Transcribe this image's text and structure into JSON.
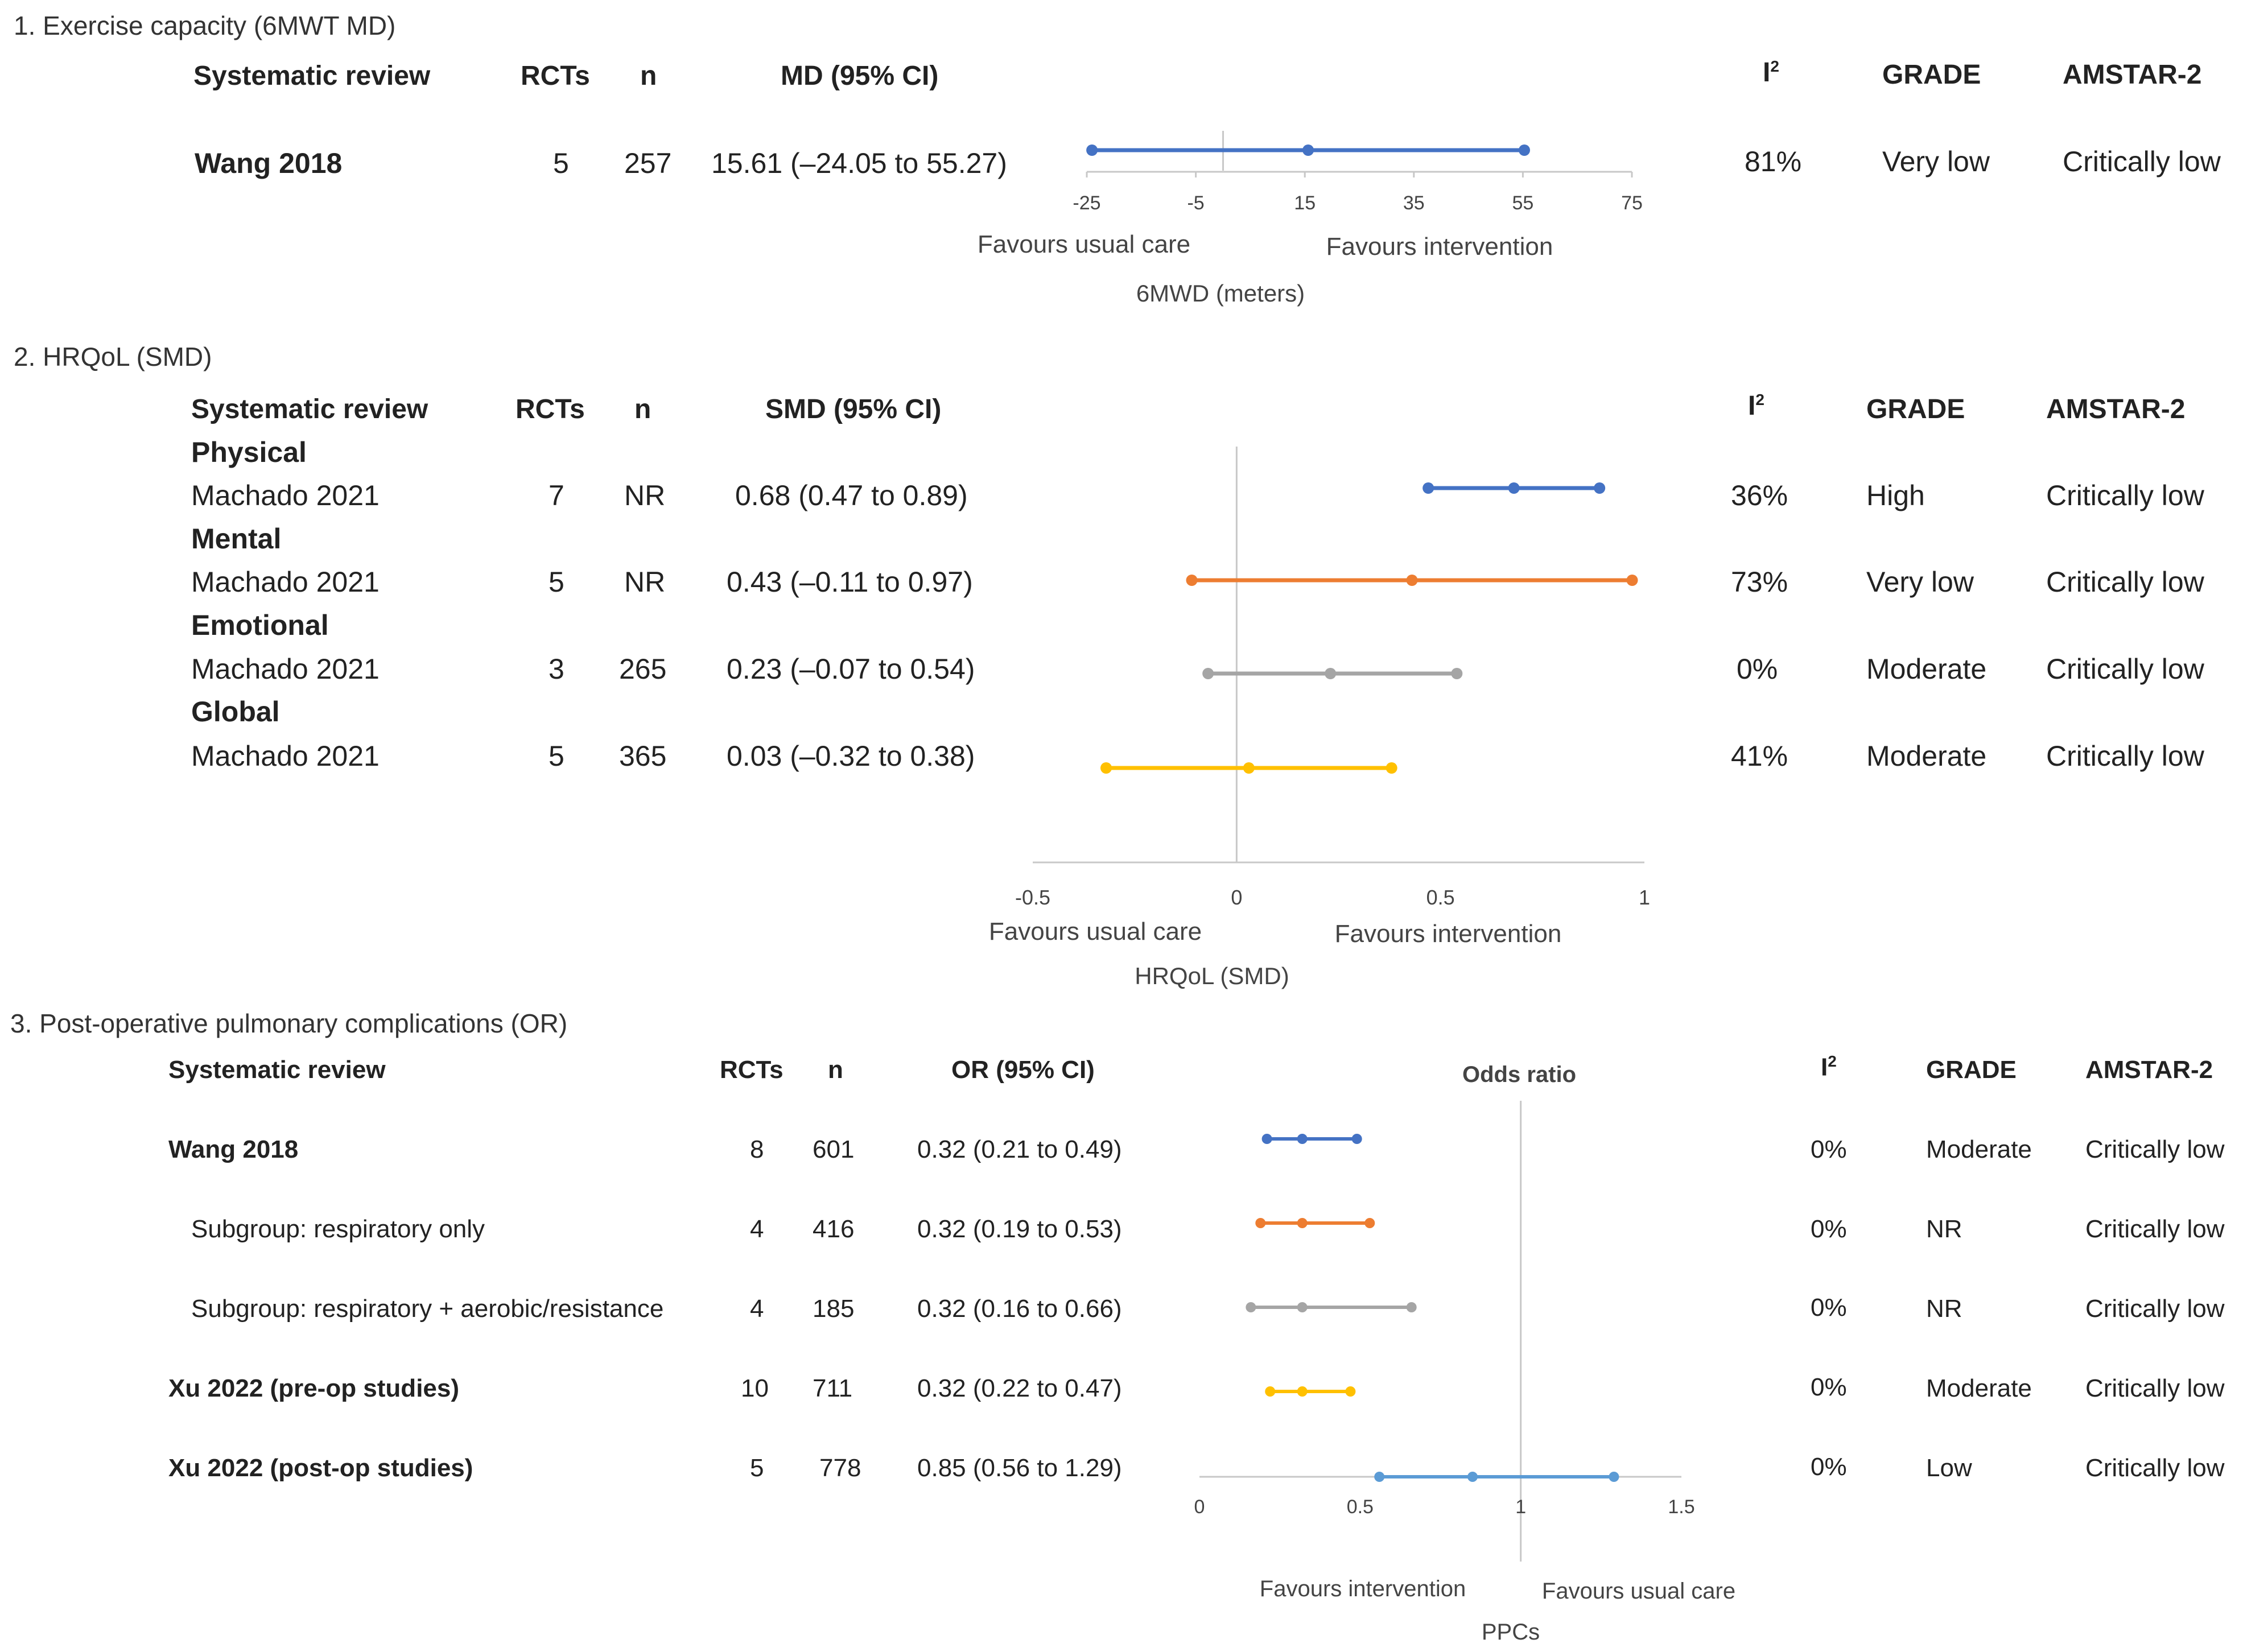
{
  "sections": [
    {
      "title": "1. Exercise capacity (6MWT MD)",
      "headers": {
        "review": "Systematic review",
        "rcts": "RCTs",
        "n": "n",
        "effect": "MD (95% CI)",
        "i2": "I",
        "i2_sup": "2",
        "grade": "GRADE",
        "amstar": "AMSTAR-2"
      },
      "rows": [
        {
          "review": "Wang 2018",
          "rcts": "5",
          "n": "257",
          "effect": "15.61 (–24.05 to 55.27)",
          "i2": "81%",
          "grade": "Very low",
          "amstar": "Critically low"
        }
      ],
      "x_label": "6MWD (meters)",
      "favours_left": "Favours usual care",
      "favours_right": "Favours intervention"
    },
    {
      "title": "2. HRQoL (SMD)",
      "headers": {
        "review": "Systematic review",
        "rcts": "RCTs",
        "n": "n",
        "effect": "SMD (95% CI)",
        "i2": "I",
        "i2_sup": "2",
        "grade": "GRADE",
        "amstar": "AMSTAR-2"
      },
      "groups": [
        {
          "name": "Physical",
          "review": "Machado 2021",
          "rcts": "7",
          "n": "NR",
          "effect": "0.68 (0.47 to 0.89)",
          "i2": "36%",
          "grade": "High",
          "amstar": "Critically low"
        },
        {
          "name": "Mental",
          "review": "Machado 2021",
          "rcts": "5",
          "n": "NR",
          "effect": "0.43 (–0.11 to 0.97)",
          "i2": "73%",
          "grade": "Very low",
          "amstar": "Critically low"
        },
        {
          "name": "Emotional",
          "review": "Machado 2021",
          "rcts": "3",
          "n": "265",
          "effect": "0.23 (–0.07 to 0.54)",
          "i2": "0%",
          "grade": "Moderate",
          "amstar": "Critically low"
        },
        {
          "name": "Global",
          "review": "Machado 2021",
          "rcts": "5",
          "n": "365",
          "effect": "0.03 (–0.32 to 0.38)",
          "i2": "41%",
          "grade": "Moderate",
          "amstar": "Critically low"
        }
      ],
      "x_label": "HRQoL (SMD)",
      "favours_left": "Favours usual care",
      "favours_right": "Favours intervention"
    },
    {
      "title": "3. Post-operative pulmonary complications (OR)",
      "headers": {
        "review": "Systematic review",
        "rcts": "RCTs",
        "n": "n",
        "effect": "OR (95% CI)",
        "i2": "I",
        "i2_sup": "2",
        "grade": "GRADE",
        "amstar": "AMSTAR-2"
      },
      "chart_title": "Odds ratio",
      "rows": [
        {
          "review": "Wang 2018",
          "rcts": "8",
          "n": "601",
          "effect": "0.32 (0.21 to 0.49)",
          "i2": "0%",
          "grade": "Moderate",
          "amstar": "Critically low"
        },
        {
          "review": "Subgroup: respiratory only",
          "rcts": "4",
          "n": "416",
          "effect": "0.32 (0.19 to 0.53)",
          "i2": "0%",
          "grade": "NR",
          "amstar": "Critically low"
        },
        {
          "review": "Subgroup: respiratory + aerobic/resistance",
          "rcts": "4",
          "n": "185",
          "effect": "0.32 (0.16 to 0.66)",
          "i2": "0%",
          "grade": "NR",
          "amstar": "Critically low"
        },
        {
          "review": "Xu 2022 (pre-op studies)",
          "rcts": "10",
          "n": "711",
          "effect": "0.32 (0.22 to 0.47)",
          "i2": "0%",
          "grade": "Moderate",
          "amstar": "Critically low"
        },
        {
          "review": "Xu 2022 (post-op studies)",
          "rcts": "5",
          "n": "778",
          "effect": "0.85 (0.56 to 1.29)",
          "i2": "0%",
          "grade": "Low",
          "amstar": "Critically low"
        }
      ],
      "x_label": "PPCs",
      "favours_left": "Favours intervention",
      "favours_right": "Favours usual care"
    }
  ],
  "chart_data": [
    {
      "type": "forest",
      "title": "1. Exercise capacity (6MWT MD)",
      "xlabel": "6MWD (meters)",
      "xlim": [
        -25,
        75
      ],
      "ticks": [
        -25,
        -5,
        15,
        35,
        55,
        75
      ],
      "tick_labels": [
        "-25",
        "-5",
        "15",
        "35",
        "55",
        "75"
      ],
      "null_line": 0,
      "series": [
        {
          "name": "Wang 2018",
          "estimate": 15.61,
          "lower": -24.05,
          "upper": 55.27,
          "color": "#4472C4"
        }
      ]
    },
    {
      "type": "forest",
      "title": "2. HRQoL (SMD)",
      "xlabel": "HRQoL (SMD)",
      "xlim": [
        -0.5,
        1
      ],
      "ticks": [
        -0.5,
        0,
        0.5,
        1
      ],
      "tick_labels": [
        "-0.5",
        "0",
        "0.5",
        "1"
      ],
      "null_line": 0,
      "series": [
        {
          "name": "Physical",
          "estimate": 0.68,
          "lower": 0.47,
          "upper": 0.89,
          "color": "#4472C4"
        },
        {
          "name": "Mental",
          "estimate": 0.43,
          "lower": -0.11,
          "upper": 0.97,
          "color": "#ED7D31"
        },
        {
          "name": "Emotional",
          "estimate": 0.23,
          "lower": -0.07,
          "upper": 0.54,
          "color": "#A5A5A5"
        },
        {
          "name": "Global",
          "estimate": 0.03,
          "lower": -0.32,
          "upper": 0.38,
          "color": "#FFC000"
        }
      ]
    },
    {
      "type": "forest",
      "title": "Odds ratio",
      "xlabel": "PPCs",
      "xlim": [
        0,
        1.5
      ],
      "ticks": [
        0,
        0.5,
        1,
        1.5
      ],
      "tick_labels": [
        "0",
        "0.5",
        "1",
        "1.5"
      ],
      "null_line": 1,
      "series": [
        {
          "name": "Wang 2018",
          "estimate": 0.32,
          "lower": 0.21,
          "upper": 0.49,
          "color": "#4472C4"
        },
        {
          "name": "Subgroup: respiratory only",
          "estimate": 0.32,
          "lower": 0.19,
          "upper": 0.53,
          "color": "#ED7D31"
        },
        {
          "name": "Subgroup: respiratory + aerobic/resistance",
          "estimate": 0.32,
          "lower": 0.16,
          "upper": 0.66,
          "color": "#A5A5A5"
        },
        {
          "name": "Xu 2022 (pre-op studies)",
          "estimate": 0.32,
          "lower": 0.22,
          "upper": 0.47,
          "color": "#FFC000"
        },
        {
          "name": "Xu 2022 (post-op studies)",
          "estimate": 0.85,
          "lower": 0.56,
          "upper": 1.29,
          "color": "#5B9BD5"
        }
      ]
    }
  ]
}
